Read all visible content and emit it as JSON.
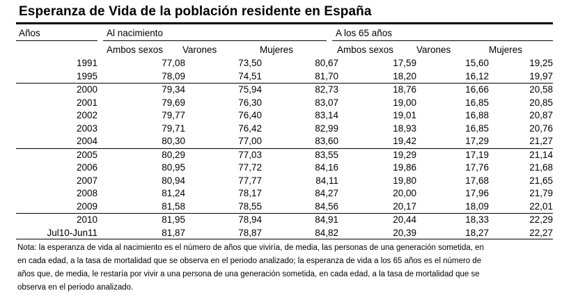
{
  "title": "Esperanza de Vida de la población residente en España",
  "header": {
    "anos": "Años",
    "al_nacimiento": "Al nacimiento",
    "a_los_65": "A los 65 años",
    "subcols": [
      "Ambos sexos",
      "Varones",
      "Mujeres",
      "Ambos sexos",
      "Varones",
      "Mujeres"
    ]
  },
  "rows": [
    [
      "1991",
      "77,08",
      "73,50",
      "80,67",
      "17,59",
      "15,60",
      "19,25"
    ],
    [
      "1995",
      "78,09",
      "74,51",
      "81,70",
      "18,20",
      "16,12",
      "19,97"
    ],
    [
      "2000",
      "79,34",
      "75,94",
      "82,73",
      "18,76",
      "16,66",
      "20,58"
    ],
    [
      "2001",
      "79,69",
      "76,30",
      "83,07",
      "19,00",
      "16,85",
      "20,85"
    ],
    [
      "2002",
      "79,77",
      "76,40",
      "83,14",
      "19,01",
      "16,88",
      "20,87"
    ],
    [
      "2003",
      "79,71",
      "76,42",
      "82,99",
      "18,93",
      "16,85",
      "20,76"
    ],
    [
      "2004",
      "80,30",
      "77,00",
      "83,60",
      "19,42",
      "17,29",
      "21,27"
    ],
    [
      "2005",
      "80,29",
      "77,03",
      "83,55",
      "19,29",
      "17,19",
      "21,14"
    ],
    [
      "2006",
      "80,95",
      "77,72",
      "84,16",
      "19,86",
      "17,76",
      "21,68"
    ],
    [
      "2007",
      "80,94",
      "77,77",
      "84,11",
      "19,80",
      "17,68",
      "21,65"
    ],
    [
      "2008",
      "81,24",
      "78,17",
      "84,27",
      "20,00",
      "17,96",
      "21,79"
    ],
    [
      "2009",
      "81,58",
      "78,55",
      "84,56",
      "20,17",
      "18,09",
      "22,01"
    ],
    [
      "2010",
      "81,95",
      "78,94",
      "84,91",
      "20,44",
      "18,33",
      "22,29"
    ],
    [
      "Jul10-Jun11",
      "81,87",
      "78,87",
      "84,82",
      "20,39",
      "18,27",
      "22,27"
    ]
  ],
  "note": {
    "lines": [
      "Nota: la esperanza de vida al nacimiento es el número de años que viviría, de media, las personas de una generación sometida, en",
      "en cada edad, a la tasa de mortalidad que se observa en el periodo analizado; la esperanza de vida a los 65 años es el número de",
      " años que, de media, le restaría por vivir a una persona de una generación sometida, en cada edad, a la tasa de mortalidad que se",
      "observa en el periodo analizado."
    ]
  }
}
